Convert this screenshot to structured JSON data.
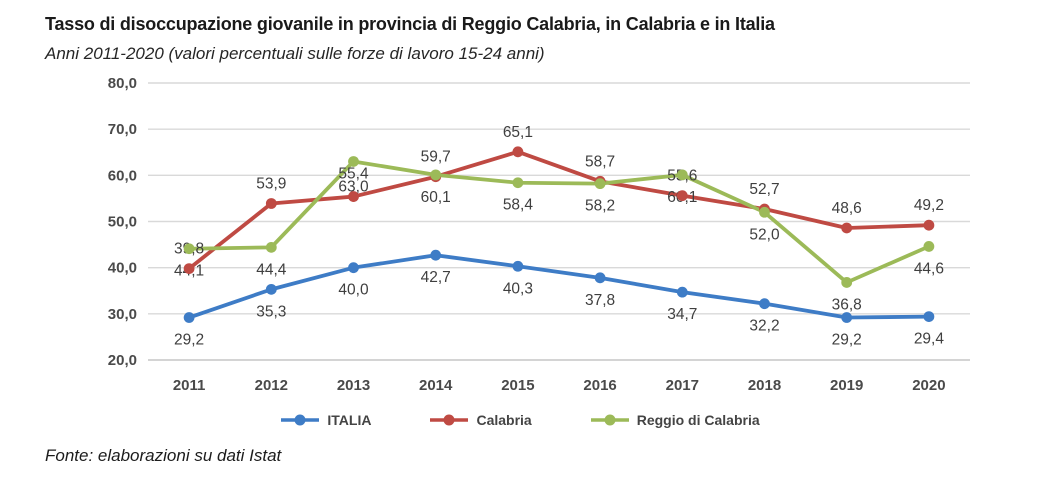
{
  "header": {
    "title": "Tasso di disoccupazione giovanile in provincia di Reggio Calabria, in Calabria e in Italia",
    "subtitle": "Anni 2011-2020 (valori percentuali sulle forze di lavoro 15-24 anni)"
  },
  "footer": {
    "source": "Fonte: elaborazioni su dati Istat"
  },
  "chart_data": {
    "type": "line",
    "title": "Tasso di disoccupazione giovanile in provincia di Reggio Calabria, in Calabria e in Italia",
    "subtitle": "Anni 2011-2020 (valori percentuali sulle forze di lavoro 15-24 anni)",
    "categories": [
      "2011",
      "2012",
      "2013",
      "2014",
      "2015",
      "2016",
      "2017",
      "2018",
      "2019",
      "2020"
    ],
    "series": [
      {
        "name": "ITALIA",
        "color": "#3E7CC6",
        "values": [
          29.2,
          35.3,
          40.0,
          42.7,
          40.3,
          37.8,
          34.7,
          32.2,
          29.2,
          29.4
        ],
        "label_position": "below"
      },
      {
        "name": "Calabria",
        "color": "#BF4A43",
        "values": [
          39.8,
          53.9,
          55.4,
          59.7,
          65.1,
          58.7,
          55.6,
          52.7,
          48.6,
          49.2
        ],
        "label_position": "above"
      },
      {
        "name": "Reggio di Calabria",
        "color": "#9CBA58",
        "values": [
          44.1,
          44.4,
          63.0,
          60.1,
          58.4,
          58.2,
          60.1,
          52.0,
          36.8,
          44.6
        ],
        "label_position": "below"
      }
    ],
    "ylim": [
      20,
      80
    ],
    "ytick_step": 10,
    "ytick_labels": [
      "20,0",
      "30,0",
      "40,0",
      "50,0",
      "60,0",
      "70,0",
      "80,0"
    ],
    "grid": true,
    "legend_position": "bottom",
    "decimal_separator": ",",
    "colors": {
      "gridline": "#D9D9D9",
      "axis_line": "#C6C6C6",
      "tick_label": "#4A4A4A",
      "data_label": "#3F3F3F"
    }
  }
}
